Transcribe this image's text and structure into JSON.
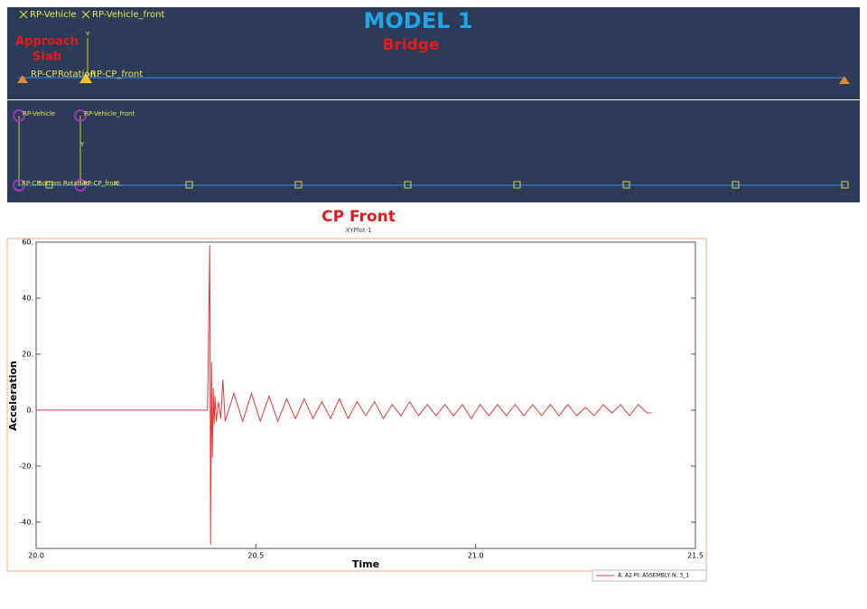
{
  "model": {
    "title": "MODEL 1",
    "approach_slab": [
      "Approach",
      "Slab"
    ],
    "bridge": "Bridge",
    "top_view": {
      "vehicle": "RP-Vehicle",
      "vehicle_front": "RP-Vehicle_front",
      "axis_y": "Y",
      "cp": "RP-CP",
      "rotation": "Rotation",
      "cp_front": "RP-CP_front"
    },
    "side_view": {
      "vehicle": "RP-Vehicle",
      "vehicle_front": "RP-Vehicle_front",
      "axis_y": "Y",
      "cp": "RP-CP",
      "rotation": "Bottom Rotation",
      "cp_front": "RP-CP_front",
      "axis_x": "X"
    }
  },
  "chart_data": {
    "type": "line",
    "title": "CP Front",
    "subtitle": "XYPlot-1",
    "xlabel": "Time",
    "ylabel": "Acceleration",
    "x": [
      20.0,
      20.39,
      20.395,
      20.397,
      20.399,
      20.401,
      20.403,
      20.405,
      20.407,
      20.41,
      20.415,
      20.42,
      20.425,
      20.43,
      20.45,
      20.47,
      20.49,
      20.51,
      20.53,
      20.55,
      20.57,
      20.59,
      20.61,
      20.63,
      20.65,
      20.67,
      20.69,
      20.71,
      20.73,
      20.75,
      20.77,
      20.79,
      20.81,
      20.83,
      20.85,
      20.87,
      20.89,
      20.91,
      20.93,
      20.95,
      20.97,
      20.99,
      21.01,
      21.03,
      21.05,
      21.07,
      21.09,
      21.11,
      21.13,
      21.15,
      21.17,
      21.19,
      21.21,
      21.23,
      21.25,
      21.27,
      21.29,
      21.31,
      21.33,
      21.35,
      21.37,
      21.39,
      21.4
    ],
    "series": [
      {
        "name": "A: A2 PI: ASSEMBLY N: 3_1",
        "color": "#e8393a",
        "values": [
          0,
          0,
          59,
          -48,
          17,
          -17,
          8,
          -5,
          5,
          -4,
          3,
          -3,
          11,
          -4,
          6,
          -4,
          6,
          -4,
          5,
          -4,
          4,
          -3,
          4,
          -3,
          3,
          -3,
          4,
          -3,
          3,
          -2,
          3,
          -3,
          2,
          -2,
          3,
          -2,
          2,
          -2,
          2,
          -2,
          2,
          -3,
          2,
          -2,
          2,
          -2,
          2,
          -2,
          2,
          -2,
          2,
          -2,
          2,
          -2,
          1,
          -2,
          2,
          -1,
          2,
          -2,
          2,
          -1,
          -1
        ]
      }
    ],
    "xlim": [
      20,
      21.5
    ],
    "ylim": [
      -49.4,
      60
    ],
    "xticks": [
      {
        "value": 20,
        "label": "20.0"
      },
      {
        "value": 20.5,
        "label": "20.5"
      },
      {
        "value": 21,
        "label": "21.0"
      },
      {
        "value": 21.5,
        "label": "21.5"
      }
    ],
    "yticks": [
      {
        "value": -40,
        "label": "-40."
      },
      {
        "value": -20,
        "label": "-20."
      },
      {
        "value": 0,
        "label": "0."
      },
      {
        "value": 20,
        "label": "20."
      },
      {
        "value": 40,
        "label": "40."
      },
      {
        "value": 60,
        "label": "60."
      }
    ],
    "grid": false,
    "legend": "below-right"
  }
}
